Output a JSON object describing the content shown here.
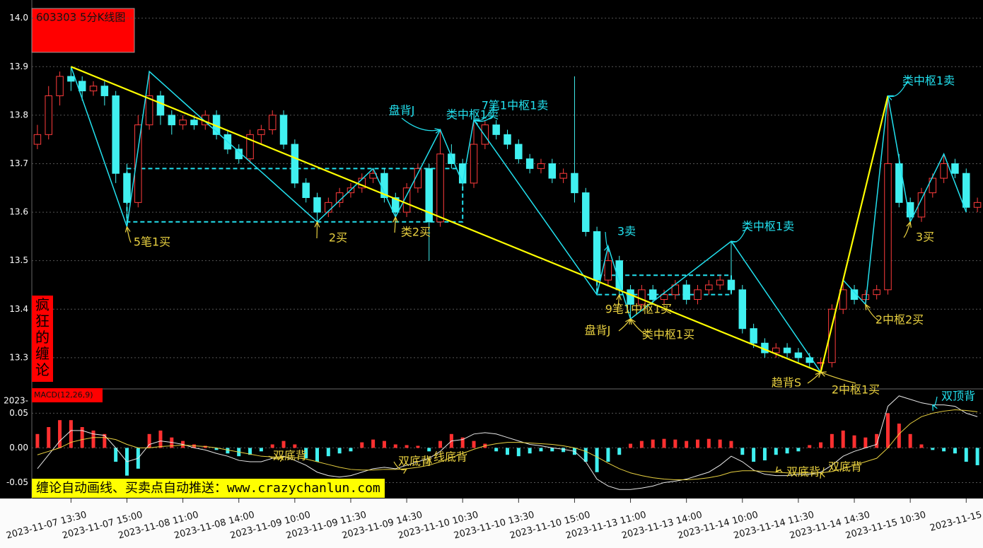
{
  "banner": "缠论自动画线、买卖点自动推送：www.crazychanlun.com",
  "chart_data": [
    {
      "type": "candlestick",
      "title": "603303 5分K线图",
      "side_label": "疯狂的缠论",
      "up_color": "#ff3c3c",
      "down_color": "#40f0f0",
      "stroke_color": "#22e0ee",
      "segment_color": "#ffff00",
      "center_color": "#22e0ee",
      "grid": true,
      "ylim": [
        13.24,
        14.02
      ],
      "yticks": [
        {
          "value": 14,
          "label": "14.0"
        },
        13.9,
        13.8,
        13.7,
        13.6,
        13.5,
        13.4,
        13.3
      ],
      "categories": [
        null,
        null,
        null,
        "2023-11-07 13:30",
        null,
        null,
        null,
        null,
        "2023-11-07 15:00",
        null,
        null,
        null,
        null,
        "2023-11-08 11:00",
        null,
        null,
        null,
        null,
        "2023-11-08 14:00",
        null,
        null,
        null,
        null,
        "2023-11-09 10:00",
        null,
        null,
        null,
        null,
        "2023-11-09 11:30",
        null,
        null,
        null,
        null,
        "2023-11-09 14:30",
        null,
        null,
        null,
        null,
        "2023-11-10 10:30",
        null,
        null,
        null,
        null,
        "2023-11-10 13:30",
        null,
        null,
        null,
        null,
        "2023-11-10 15:00",
        null,
        null,
        null,
        null,
        "2023-11-13 11:00",
        null,
        null,
        null,
        null,
        "2023-11-13 14:00",
        null,
        null,
        null,
        null,
        "2023-11-14 10:00",
        null,
        null,
        null,
        null,
        "2023-11-14 11:30",
        null,
        null,
        null,
        null,
        "2023-11-14 14:30",
        null,
        null,
        null,
        null,
        "2023-11-15 10:30",
        null,
        null,
        null,
        null,
        "2023-11-15",
        null
      ],
      "candles": [
        [
          13.74,
          13.78,
          13.73,
          13.76
        ],
        [
          13.76,
          13.86,
          13.75,
          13.84
        ],
        [
          13.84,
          13.89,
          13.82,
          13.88
        ],
        [
          13.88,
          13.9,
          13.85,
          13.87
        ],
        [
          13.87,
          13.88,
          13.83,
          13.85
        ],
        [
          13.85,
          13.87,
          13.84,
          13.86
        ],
        [
          13.86,
          13.87,
          13.82,
          13.84
        ],
        [
          13.84,
          13.85,
          13.66,
          13.68
        ],
        [
          13.68,
          13.7,
          13.57,
          13.62
        ],
        [
          13.62,
          13.8,
          13.61,
          13.78
        ],
        [
          13.78,
          13.89,
          13.77,
          13.84
        ],
        [
          13.84,
          13.85,
          13.78,
          13.8
        ],
        [
          13.8,
          13.81,
          13.76,
          13.78
        ],
        [
          13.78,
          13.8,
          13.77,
          13.79
        ],
        [
          13.79,
          13.8,
          13.77,
          13.78
        ],
        [
          13.78,
          13.81,
          13.77,
          13.8
        ],
        [
          13.8,
          13.81,
          13.75,
          13.76
        ],
        [
          13.76,
          13.77,
          13.72,
          13.73
        ],
        [
          13.73,
          13.74,
          13.7,
          13.71
        ],
        [
          13.71,
          13.77,
          13.7,
          13.76
        ],
        [
          13.76,
          13.78,
          13.74,
          13.77
        ],
        [
          13.77,
          13.81,
          13.76,
          13.8
        ],
        [
          13.8,
          13.81,
          13.73,
          13.74
        ],
        [
          13.74,
          13.75,
          13.65,
          13.66
        ],
        [
          13.66,
          13.67,
          13.62,
          13.63
        ],
        [
          13.63,
          13.64,
          13.58,
          13.6
        ],
        [
          13.6,
          13.63,
          13.59,
          13.62
        ],
        [
          13.62,
          13.65,
          13.61,
          13.64
        ],
        [
          13.64,
          13.66,
          13.63,
          13.65
        ],
        [
          13.65,
          13.68,
          13.64,
          13.67
        ],
        [
          13.67,
          13.69,
          13.66,
          13.68
        ],
        [
          13.68,
          13.69,
          13.62,
          13.63
        ],
        [
          13.63,
          13.64,
          13.59,
          13.6
        ],
        [
          13.6,
          13.66,
          13.59,
          13.65
        ],
        [
          13.65,
          13.7,
          13.64,
          13.69
        ],
        [
          13.69,
          13.7,
          13.5,
          13.58
        ],
        [
          13.58,
          13.77,
          13.57,
          13.72
        ],
        [
          13.72,
          13.74,
          13.69,
          13.7
        ],
        [
          13.7,
          13.71,
          13.65,
          13.66
        ],
        [
          13.66,
          13.79,
          13.65,
          13.74
        ],
        [
          13.74,
          13.79,
          13.73,
          13.78
        ],
        [
          13.78,
          13.79,
          13.75,
          13.76
        ],
        [
          13.76,
          13.77,
          13.73,
          13.74
        ],
        [
          13.74,
          13.75,
          13.7,
          13.71
        ],
        [
          13.71,
          13.72,
          13.68,
          13.69
        ],
        [
          13.69,
          13.71,
          13.68,
          13.7
        ],
        [
          13.7,
          13.71,
          13.66,
          13.67
        ],
        [
          13.67,
          13.69,
          13.66,
          13.68
        ],
        [
          13.68,
          13.88,
          13.62,
          13.64
        ],
        [
          13.64,
          13.65,
          13.55,
          13.56
        ],
        [
          13.56,
          13.57,
          13.43,
          13.46
        ],
        [
          13.46,
          13.53,
          13.45,
          13.5
        ],
        [
          13.5,
          13.51,
          13.43,
          13.44
        ],
        [
          13.44,
          13.45,
          13.38,
          13.41
        ],
        [
          13.41,
          13.45,
          13.4,
          13.44
        ],
        [
          13.44,
          13.45,
          13.41,
          13.42
        ],
        [
          13.42,
          13.44,
          13.41,
          13.43
        ],
        [
          13.43,
          13.46,
          13.42,
          13.45
        ],
        [
          13.45,
          13.46,
          13.41,
          13.42
        ],
        [
          13.42,
          13.45,
          13.41,
          13.44
        ],
        [
          13.44,
          13.46,
          13.43,
          13.45
        ],
        [
          13.45,
          13.47,
          13.44,
          13.46
        ],
        [
          13.46,
          13.54,
          13.43,
          13.44
        ],
        [
          13.44,
          13.45,
          13.35,
          13.36
        ],
        [
          13.36,
          13.37,
          13.32,
          13.33
        ],
        [
          13.33,
          13.34,
          13.3,
          13.31
        ],
        [
          13.31,
          13.33,
          13.3,
          13.32
        ],
        [
          13.32,
          13.33,
          13.3,
          13.31
        ],
        [
          13.31,
          13.32,
          13.29,
          13.3
        ],
        [
          13.3,
          13.31,
          13.28,
          13.29
        ],
        [
          13.29,
          13.3,
          13.27,
          13.29
        ],
        [
          13.29,
          13.41,
          13.28,
          13.4
        ],
        [
          13.4,
          13.46,
          13.39,
          13.44
        ],
        [
          13.44,
          13.45,
          13.41,
          13.42
        ],
        [
          13.42,
          13.44,
          13.41,
          13.43
        ],
        [
          13.43,
          13.45,
          13.42,
          13.44
        ],
        [
          13.44,
          13.84,
          13.43,
          13.7
        ],
        [
          13.7,
          13.72,
          13.61,
          13.62
        ],
        [
          13.62,
          13.63,
          13.58,
          13.59
        ],
        [
          13.59,
          13.65,
          13.58,
          13.64
        ],
        [
          13.64,
          13.68,
          13.63,
          13.67
        ],
        [
          13.67,
          13.72,
          13.66,
          13.7
        ],
        [
          13.7,
          13.71,
          13.67,
          13.68
        ],
        [
          13.68,
          13.69,
          13.6,
          13.61
        ],
        [
          13.61,
          13.63,
          13.6,
          13.62
        ]
      ],
      "strokes": [
        [
          3,
          13.9
        ],
        [
          8,
          13.57
        ],
        [
          10,
          13.89
        ],
        [
          25,
          13.58
        ],
        [
          30,
          13.69
        ],
        [
          32,
          13.59
        ],
        [
          36,
          13.77
        ],
        [
          38,
          13.66
        ],
        [
          39,
          13.79
        ],
        [
          50,
          13.43
        ],
        [
          51,
          13.53
        ],
        [
          53,
          13.38
        ],
        [
          62,
          13.54
        ],
        [
          70,
          13.27
        ],
        [
          72,
          13.46
        ],
        [
          74,
          13.41
        ],
        [
          76,
          13.84
        ],
        [
          78,
          13.58
        ],
        [
          81,
          13.72
        ],
        [
          83,
          13.6
        ]
      ],
      "segments": [
        [
          3,
          13.9
        ],
        [
          70,
          13.27
        ],
        [
          76,
          13.84
        ]
      ],
      "centers": [
        {
          "start": 8,
          "end": 38,
          "low": 13.58,
          "high": 13.69
        },
        {
          "start": 50,
          "end": 62,
          "low": 13.43,
          "high": 13.47
        }
      ],
      "annotations": [
        {
          "text": "5笔1买",
          "x": 8,
          "y": 13.57,
          "color": "#e8d040"
        },
        {
          "text": "2买",
          "x": 25,
          "y": 13.58,
          "color": "#e8d040"
        },
        {
          "text": "类2买",
          "x": 32,
          "y": 13.59,
          "color": "#e8d040"
        },
        {
          "text": "盘背J",
          "x": 36,
          "y": 13.77,
          "color": "#22e0ee"
        },
        {
          "text": "类中枢1卖",
          "x": 39,
          "y": 13.79,
          "color": "#22e0ee"
        },
        {
          "text": "7笔1中枢1卖",
          "x": 39,
          "y": 13.79,
          "color": "#22e0ee"
        },
        {
          "text": "3卖",
          "x": 51,
          "y": 13.53,
          "color": "#22e0ee"
        },
        {
          "text": "9笔1中枢1买",
          "x": 52,
          "y": 13.43,
          "color": "#e8d040"
        },
        {
          "text": "盘背J",
          "x": 53,
          "y": 13.38,
          "color": "#e8d040"
        },
        {
          "text": "类中枢1买",
          "x": 53,
          "y": 13.38,
          "color": "#e8d040"
        },
        {
          "text": "类中枢1卖",
          "x": 62,
          "y": 13.54,
          "color": "#22e0ee"
        },
        {
          "text": "趋背S",
          "x": 70,
          "y": 13.27,
          "color": "#e8d040"
        },
        {
          "text": "2中枢1买",
          "x": 70,
          "y": 13.27,
          "color": "#e8d040"
        },
        {
          "text": "2中枢2买",
          "x": 74,
          "y": 13.41,
          "color": "#e8d040"
        },
        {
          "text": "类中枢1卖",
          "x": 76,
          "y": 13.84,
          "color": "#22e0ee"
        },
        {
          "text": "3买",
          "x": 78,
          "y": 13.58,
          "color": "#e8d040"
        }
      ]
    },
    {
      "type": "macd",
      "label": "MACD(12,26,9)",
      "top_label": "2023-",
      "up_color": "#ff3030",
      "down_color": "#40f0f0",
      "grid": true,
      "ylim": [
        -0.073,
        0.082
      ],
      "yticks": [
        0.05,
        {
          "value": 0,
          "label": "0.00"
        },
        -0.05
      ],
      "histogram": [
        0.02,
        0.03,
        0.04,
        0.04,
        0.03,
        0.025,
        0.02,
        -0.02,
        -0.04,
        -0.03,
        0.02,
        0.025,
        0.015,
        0.01,
        0.005,
        0.003,
        -0.003,
        -0.008,
        -0.012,
        -0.01,
        -0.005,
        0.005,
        0.01,
        0.005,
        -0.015,
        -0.02,
        -0.012,
        -0.008,
        -0.005,
        0.008,
        0.012,
        0.01,
        0.005,
        0.004,
        0.003,
        -0.005,
        0.01,
        0.02,
        0.015,
        0.01,
        0.006,
        -0.005,
        -0.01,
        -0.012,
        -0.008,
        -0.005,
        -0.005,
        -0.006,
        -0.01,
        -0.02,
        -0.035,
        -0.02,
        -0.01,
        0.006,
        0.01,
        0.012,
        0.013,
        0.012,
        0.01,
        0.012,
        0.013,
        0.012,
        0.01,
        -0.01,
        -0.02,
        -0.018,
        -0.01,
        -0.008,
        -0.005,
        0.004,
        0.008,
        0.02,
        0.025,
        0.018,
        0.015,
        0.02,
        0.05,
        0.035,
        0.02,
        0.005,
        -0.003,
        -0.005,
        -0.008,
        -0.02,
        -0.025
      ],
      "lines": [
        {
          "color": "#e8e8e8",
          "values": [
            -0.03,
            -0.01,
            0.01,
            0.025,
            0.025,
            0.02,
            0.018,
            0.0,
            -0.02,
            -0.015,
            0.005,
            0.01,
            0.008,
            0.005,
            0.0,
            -0.003,
            -0.008,
            -0.012,
            -0.018,
            -0.02,
            -0.02,
            -0.015,
            -0.012,
            -0.018,
            -0.025,
            -0.035,
            -0.04,
            -0.042,
            -0.04,
            -0.035,
            -0.03,
            -0.028,
            -0.03,
            -0.025,
            -0.02,
            -0.015,
            -0.005,
            0.01,
            0.012,
            0.02,
            0.022,
            0.02,
            0.015,
            0.01,
            0.005,
            0.003,
            0.0,
            -0.002,
            -0.005,
            -0.02,
            -0.045,
            -0.055,
            -0.06,
            -0.06,
            -0.058,
            -0.055,
            -0.05,
            -0.048,
            -0.045,
            -0.04,
            -0.035,
            -0.025,
            -0.012,
            -0.02,
            -0.032,
            -0.038,
            -0.04,
            -0.04,
            -0.038,
            -0.038,
            -0.035,
            -0.025,
            -0.012,
            -0.005,
            0.0,
            0.005,
            0.06,
            0.075,
            0.07,
            0.065,
            0.062,
            0.062,
            0.06,
            0.05,
            0.045
          ]
        },
        {
          "color": "#e8d040",
          "values": [
            -0.01,
            -0.005,
            0.0,
            0.008,
            0.012,
            0.015,
            0.015,
            0.012,
            0.005,
            0.0,
            0.0,
            0.002,
            0.003,
            0.004,
            0.003,
            0.002,
            0.0,
            -0.003,
            -0.006,
            -0.009,
            -0.012,
            -0.013,
            -0.013,
            -0.014,
            -0.016,
            -0.02,
            -0.024,
            -0.028,
            -0.031,
            -0.032,
            -0.032,
            -0.031,
            -0.031,
            -0.03,
            -0.028,
            -0.025,
            -0.02,
            -0.014,
            -0.008,
            -0.002,
            0.003,
            0.006,
            0.008,
            0.008,
            0.007,
            0.006,
            0.005,
            0.003,
            0.0,
            -0.005,
            -0.013,
            -0.022,
            -0.03,
            -0.036,
            -0.04,
            -0.043,
            -0.045,
            -0.046,
            -0.046,
            -0.045,
            -0.043,
            -0.04,
            -0.035,
            -0.033,
            -0.033,
            -0.034,
            -0.035,
            -0.036,
            -0.036,
            -0.036,
            -0.036,
            -0.034,
            -0.03,
            -0.025,
            -0.02,
            -0.015,
            0.0,
            0.02,
            0.035,
            0.045,
            0.05,
            0.053,
            0.055,
            0.054,
            0.052
          ]
        }
      ],
      "annotations": [
        {
          "text": "双底背",
          "x": 22,
          "y": -0.013,
          "color": "#e8d040"
        },
        {
          "text": "双底背",
          "x": 33,
          "y": -0.03,
          "color": "#e8d040"
        },
        {
          "text": "线底背",
          "x": 35,
          "y": -0.015,
          "color": "#e8d040"
        },
        {
          "text": "双底背",
          "x": 66,
          "y": -0.035,
          "color": "#e8d040"
        },
        {
          "text": "双底背",
          "x": 70,
          "y": -0.036,
          "color": "#e8d040"
        },
        {
          "text": "双顶背",
          "x": 80,
          "y": 0.062,
          "color": "#22e0ee"
        }
      ]
    }
  ]
}
